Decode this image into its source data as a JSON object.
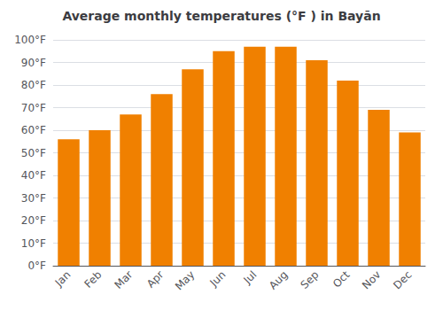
{
  "chart_data": {
    "type": "bar",
    "title": "Average monthly temperatures (°F ) in Bayān",
    "categories": [
      "Jan",
      "Feb",
      "Mar",
      "Apr",
      "May",
      "Jun",
      "Jul",
      "Aug",
      "Sep",
      "Oct",
      "Nov",
      "Dec"
    ],
    "values": [
      56,
      60,
      67,
      76,
      87,
      95,
      97,
      97,
      91,
      82,
      69,
      59
    ],
    "color": "#F08000",
    "ylim": [
      0,
      100
    ],
    "yticks": [
      {
        "value": 0,
        "label": "0°F"
      },
      {
        "value": 10,
        "label": "10°F"
      },
      {
        "value": 20,
        "label": "20°F"
      },
      {
        "value": 30,
        "label": "30°F"
      },
      {
        "value": 40,
        "label": "40°F"
      },
      {
        "value": 50,
        "label": "50°F"
      },
      {
        "value": 60,
        "label": "60°F"
      },
      {
        "value": 70,
        "label": "70°F"
      },
      {
        "value": 80,
        "label": "80°F"
      },
      {
        "value": 90,
        "label": "90°F"
      },
      {
        "value": 100,
        "label": "100°F"
      }
    ],
    "grid": true
  }
}
